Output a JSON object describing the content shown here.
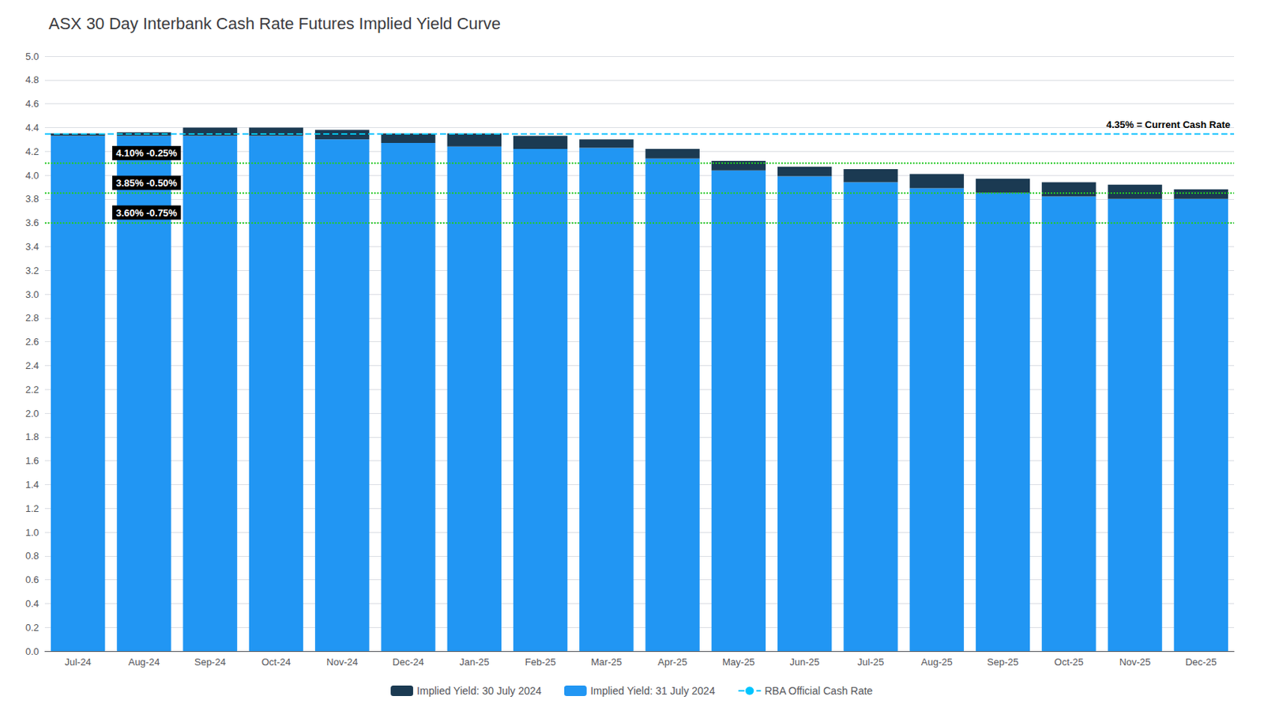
{
  "chart_data": {
    "type": "bar",
    "title": "ASX 30 Day Interbank Cash Rate Futures Implied Yield Curve",
    "categories": [
      "Jul-24",
      "Aug-24",
      "Sep-24",
      "Oct-24",
      "Nov-24",
      "Dec-24",
      "Jan-25",
      "Feb-25",
      "Mar-25",
      "Apr-25",
      "May-25",
      "Jun-25",
      "Jul-25",
      "Aug-25",
      "Sep-25",
      "Oct-25",
      "Nov-25",
      "Dec-25"
    ],
    "series": [
      {
        "name": "Implied Yield: 31 July 2024",
        "color": "#2196F3",
        "values": [
          4.33,
          4.33,
          4.33,
          4.33,
          4.3,
          4.27,
          4.24,
          4.22,
          4.23,
          4.14,
          4.04,
          3.99,
          3.94,
          3.89,
          3.85,
          3.82,
          3.8,
          3.8
        ]
      },
      {
        "name": "Implied Yield: 30 July 2024",
        "color": "#1B3A52",
        "values": [
          0.02,
          0.03,
          0.07,
          0.07,
          0.08,
          0.08,
          0.11,
          0.11,
          0.07,
          0.08,
          0.08,
          0.08,
          0.11,
          0.12,
          0.12,
          0.12,
          0.12,
          0.08
        ]
      }
    ],
    "stacked": true,
    "reference_lines": [
      {
        "name": "RBA Official Cash Rate",
        "value": 4.35,
        "label": "4.35% = Current Cash Rate",
        "color": "#00C5FF",
        "line_style": "dashed"
      },
      {
        "value": 4.1,
        "label": "4.10% -0.25%",
        "color": "#22CC22",
        "line_style": "dotted"
      },
      {
        "value": 3.85,
        "label": "3.85% -0.50%",
        "color": "#22CC22",
        "line_style": "dotted"
      },
      {
        "value": 3.6,
        "label": "3.60% -0.75%",
        "color": "#22CC22",
        "line_style": "dotted"
      }
    ],
    "ylim": [
      0.0,
      5.0
    ],
    "yticks": [
      {
        "value": 0,
        "label": "0.0"
      },
      0.2,
      0.4,
      0.6,
      0.8,
      {
        "value": 1,
        "label": "1.0"
      },
      1.2,
      1.4,
      1.6,
      1.8,
      {
        "value": 2,
        "label": "2.0"
      },
      2.2,
      2.4,
      2.6,
      2.8,
      {
        "value": 3,
        "label": "3.0"
      },
      3.2,
      3.4,
      3.6,
      3.8,
      {
        "value": 4,
        "label": "4.0"
      },
      4.2,
      4.4,
      4.6,
      4.8,
      {
        "value": 5,
        "label": "5.0"
      }
    ],
    "grid": true,
    "legend": "bottom"
  }
}
